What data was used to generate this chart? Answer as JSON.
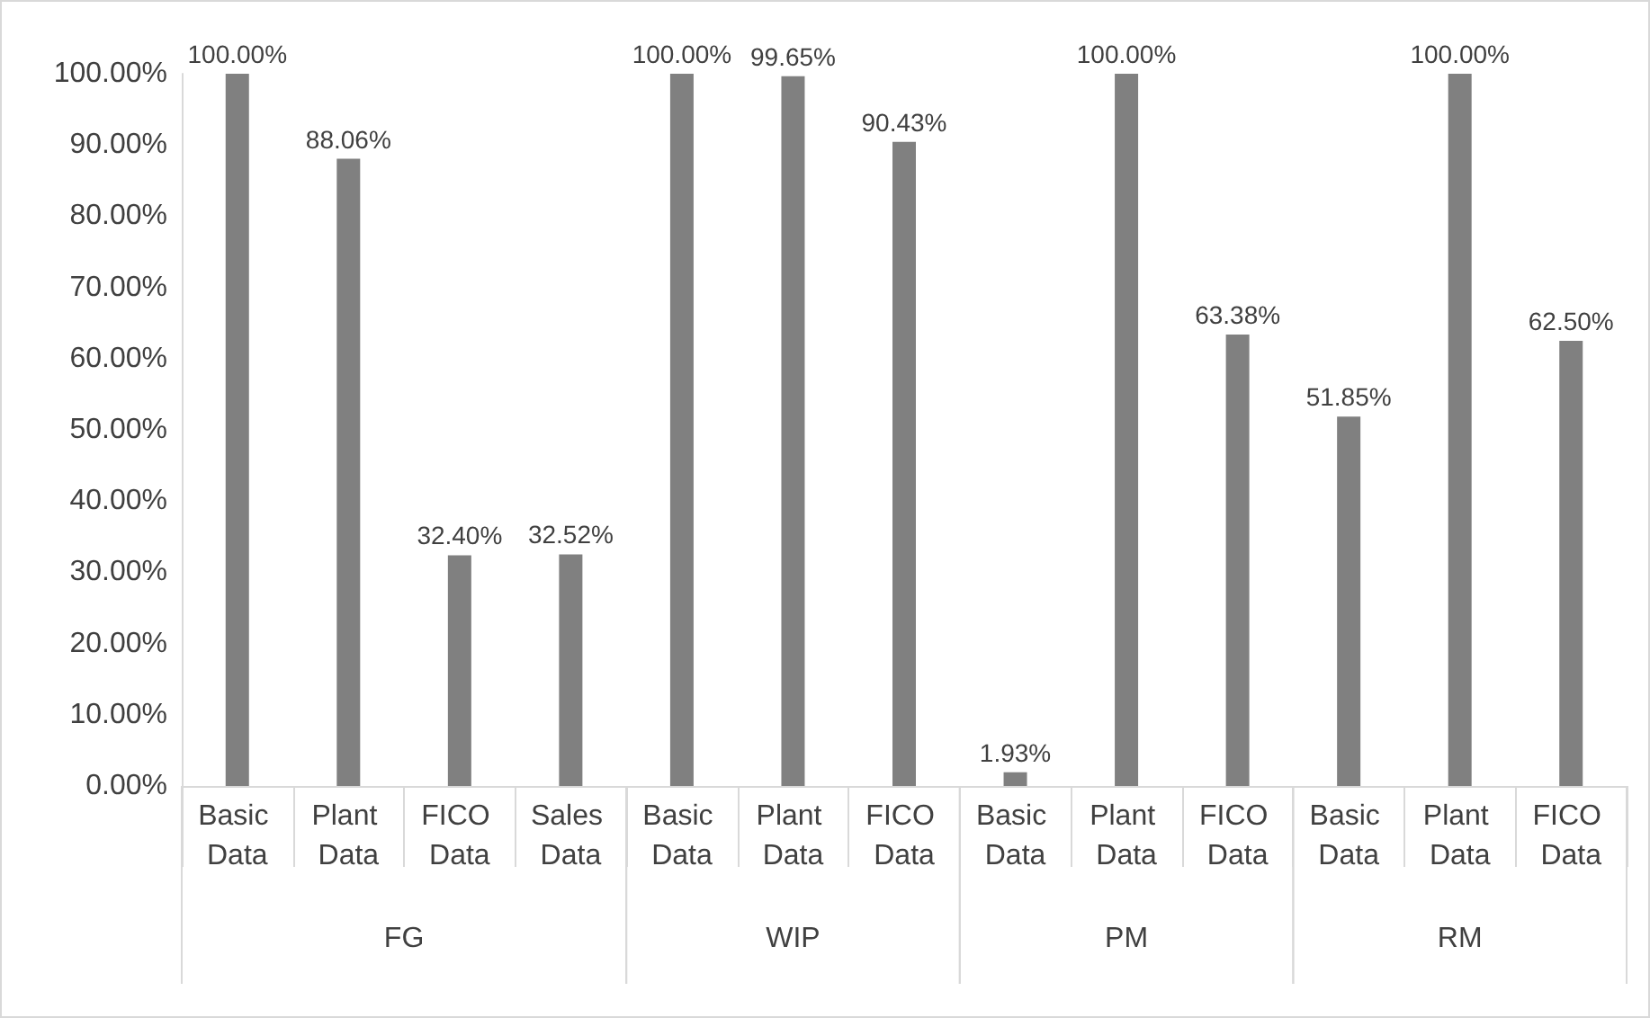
{
  "chart_data": {
    "type": "bar",
    "categories": [
      "Basic Data",
      "Plant Data",
      "FICO Data",
      "Sales Data",
      "Basic Data",
      "Plant Data",
      "FICO Data",
      "Basic Data",
      "Plant Data",
      "FICO Data",
      "Basic Data",
      "Plant Data",
      "FICO Data"
    ],
    "series": [
      {
        "color": "#808080",
        "values": [
          100,
          88.06,
          32.4,
          32.52,
          null,
          null,
          null,
          null,
          null,
          null,
          null,
          null,
          null
        ],
        "value_labels": [
          "100.00%",
          "88.06%",
          "32.40%",
          "32.52%",
          null,
          null,
          null,
          null,
          null,
          null,
          null,
          null,
          null
        ]
      },
      {
        "color": "#808080",
        "values": [
          null,
          null,
          null,
          null,
          100,
          99.65,
          90.43,
          null,
          null,
          null,
          null,
          null,
          null
        ],
        "value_labels": [
          null,
          null,
          null,
          null,
          "100.00%",
          "99.65%",
          "90.43%",
          null,
          null,
          null,
          null,
          null,
          null
        ]
      },
      {
        "color": "#808080",
        "values": [
          null,
          null,
          null,
          null,
          null,
          null,
          null,
          1.93,
          100,
          63.38,
          null,
          null,
          null
        ],
        "value_labels": [
          null,
          null,
          null,
          null,
          null,
          null,
          null,
          "1.93%",
          "100.00%",
          "63.38%",
          null,
          null,
          null
        ]
      },
      {
        "color": "#808080",
        "values": [
          null,
          null,
          null,
          null,
          null,
          null,
          null,
          null,
          null,
          null,
          51.85,
          100,
          62.5
        ],
        "value_labels": [
          null,
          null,
          null,
          null,
          null,
          null,
          null,
          null,
          null,
          null,
          "51.85%",
          "100.00%",
          "62.50%"
        ]
      }
    ],
    "annotations": [
      "FG",
      "WIP",
      "PM",
      "RM"
    ],
    "ylim": [
      0,
      100
    ],
    "yticks": [
      {
        "value": 0,
        "label": "0.00%"
      },
      {
        "value": 10,
        "label": "10.00%"
      },
      {
        "value": 20,
        "label": "20.00%"
      },
      {
        "value": 30,
        "label": "30.00%"
      },
      {
        "value": 40,
        "label": "40.00%"
      },
      {
        "value": 50,
        "label": "50.00%"
      },
      {
        "value": 60,
        "label": "60.00%"
      },
      {
        "value": 70,
        "label": "70.00%"
      },
      {
        "value": 80,
        "label": "80.00%"
      },
      {
        "value": 90,
        "label": "90.00%"
      },
      {
        "value": 100,
        "label": "100.00%"
      }
    ],
    "grid": false
  }
}
